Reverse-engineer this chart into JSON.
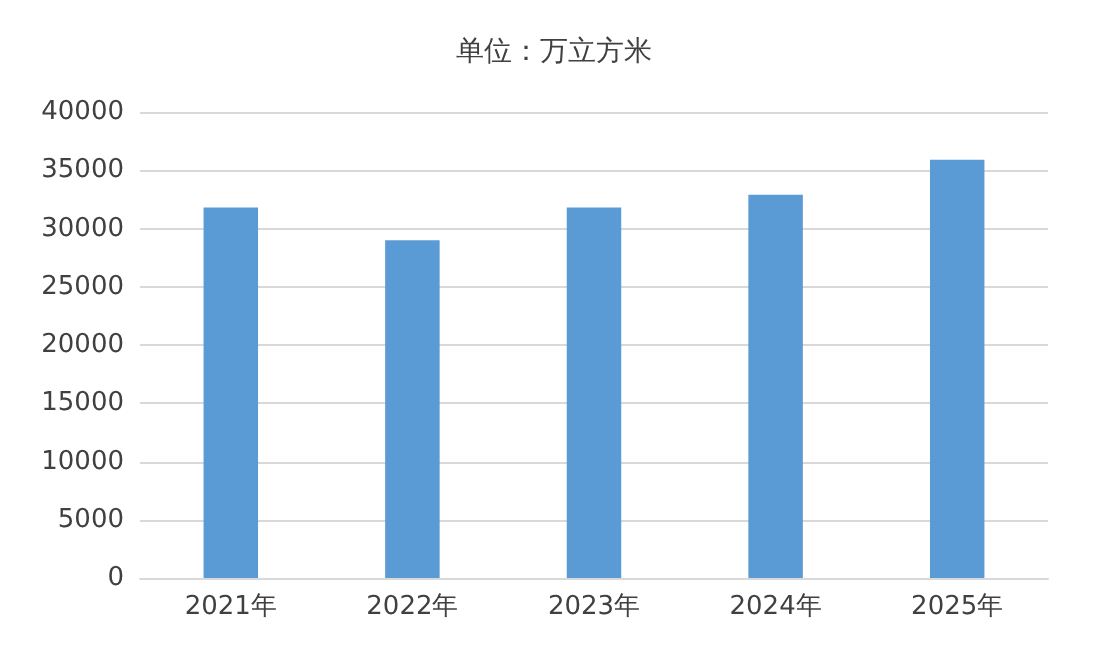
{
  "chart_data": {
    "type": "bar",
    "title": "单位：万立方米",
    "categories": [
      "2021年",
      "2022年",
      "2023年",
      "2024年",
      "2025年"
    ],
    "values": [
      31800,
      29000,
      31800,
      32900,
      35900
    ],
    "color": "#5b9bd5",
    "ylim": [
      0,
      40000
    ],
    "yticks": [
      0,
      5000,
      10000,
      15000,
      20000,
      25000,
      30000,
      35000,
      40000
    ],
    "grid": "y"
  }
}
